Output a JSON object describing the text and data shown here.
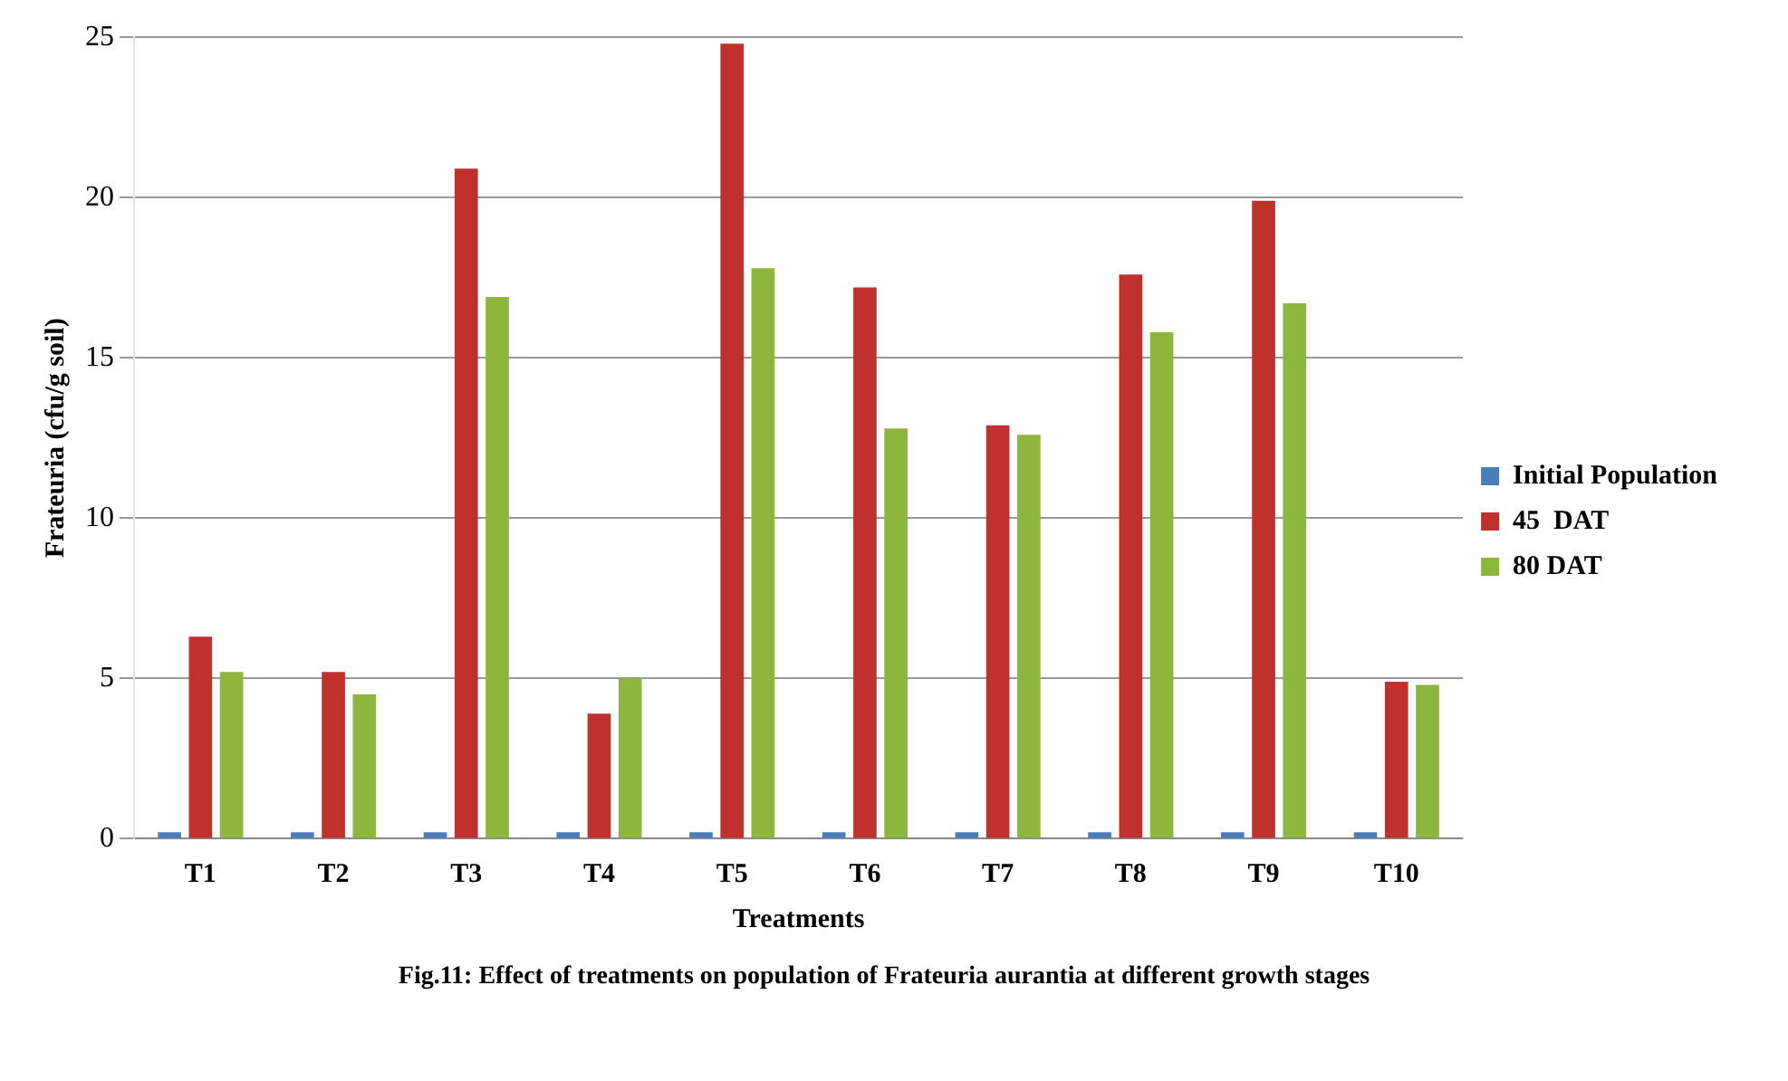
{
  "chart_data": {
    "type": "bar",
    "title": "Fig.11: Effect of treatments on population of Frateuria aurantia at different growth stages",
    "xlabel": "Treatments",
    "ylabel": "Frateuria (cfu/g soil)",
    "categories": [
      "T1",
      "T2",
      "T3",
      "T4",
      "T5",
      "T6",
      "T7",
      "T8",
      "T9",
      "T10"
    ],
    "series": [
      {
        "name": "Initial Population",
        "color": "#4a7ebb",
        "values": [
          0.2,
          0.2,
          0.2,
          0.2,
          0.2,
          0.2,
          0.2,
          0.2,
          0.2,
          0.2
        ]
      },
      {
        "name": "45  DAT",
        "color": "#c0312e",
        "values": [
          6.3,
          5.2,
          20.9,
          3.9,
          24.8,
          17.2,
          12.9,
          17.6,
          19.9,
          4.9
        ]
      },
      {
        "name": "80 DAT",
        "color": "#8db63c",
        "values": [
          5.2,
          4.5,
          16.9,
          5.0,
          17.8,
          12.8,
          12.6,
          15.8,
          16.7,
          4.8
        ]
      }
    ],
    "ylim": [
      0,
      25
    ],
    "yticks": [
      0,
      5,
      10,
      15,
      20,
      25
    ],
    "grid": "y",
    "legend": "right"
  }
}
